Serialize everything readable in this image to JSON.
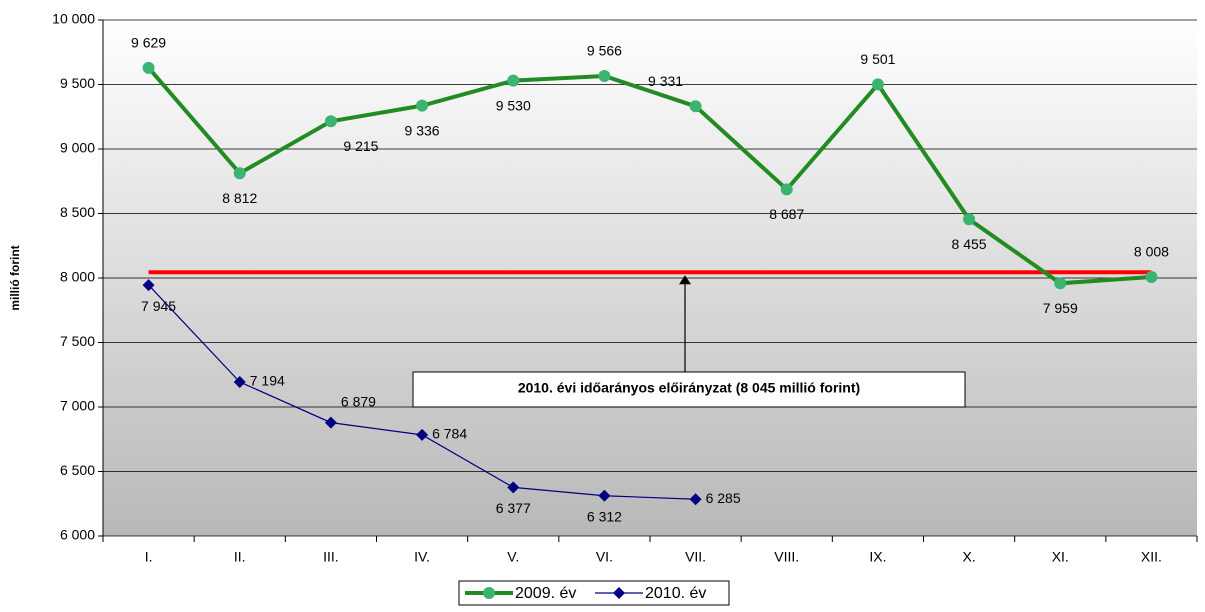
{
  "chart_data": {
    "type": "line",
    "y_label": "millió forint",
    "categories": [
      "I.",
      "II.",
      "III.",
      "IV.",
      "V.",
      "VI.",
      "VII.",
      "VIII.",
      "IX.",
      "X.",
      "XI.",
      "XII."
    ],
    "series": [
      {
        "name": "2009. év",
        "color": "#228b22",
        "marker": "circle",
        "marker_color": "#3cb371",
        "values": [
          9629,
          8812,
          9215,
          9336,
          9530,
          9566,
          9331,
          8687,
          9501,
          8455,
          7959,
          8008
        ],
        "value_labels": [
          "9 629",
          "8 812",
          "9 215",
          "9 336",
          "9 530",
          "9 566",
          "9 331",
          "8 687",
          "9 501",
          "8 455",
          "7 959",
          "8 008"
        ]
      },
      {
        "name": "2010. év",
        "color": "#000080",
        "marker": "diamond",
        "marker_color": "#000080",
        "values": [
          7945,
          7194,
          6879,
          6784,
          6377,
          6312,
          6285,
          null,
          null,
          null,
          null,
          null
        ],
        "value_labels": [
          "7 945",
          "7 194",
          "6 879",
          "6 784",
          "6 377",
          "6 312",
          "6 285",
          null,
          null,
          null,
          null,
          null
        ]
      }
    ],
    "reference_line": {
      "value": 8045,
      "color": "#ff0000",
      "label": "2010. évi időarányos előirányzat (8 045 millió forint)"
    },
    "ylim": [
      6000,
      10000
    ],
    "yticks": [
      {
        "value": 6000,
        "label": "6 000"
      },
      {
        "value": 6500,
        "label": "6 500"
      },
      {
        "value": 7000,
        "label": "7 000"
      },
      {
        "value": 7500,
        "label": "7 500"
      },
      {
        "value": 8000,
        "label": "8 000"
      },
      {
        "value": 8500,
        "label": "8 500"
      },
      {
        "value": 9000,
        "label": "9 000"
      },
      {
        "value": 9500,
        "label": "9 500"
      },
      {
        "value": 10000,
        "label": "10 000"
      }
    ],
    "grid": true,
    "legend": "bottom"
  }
}
